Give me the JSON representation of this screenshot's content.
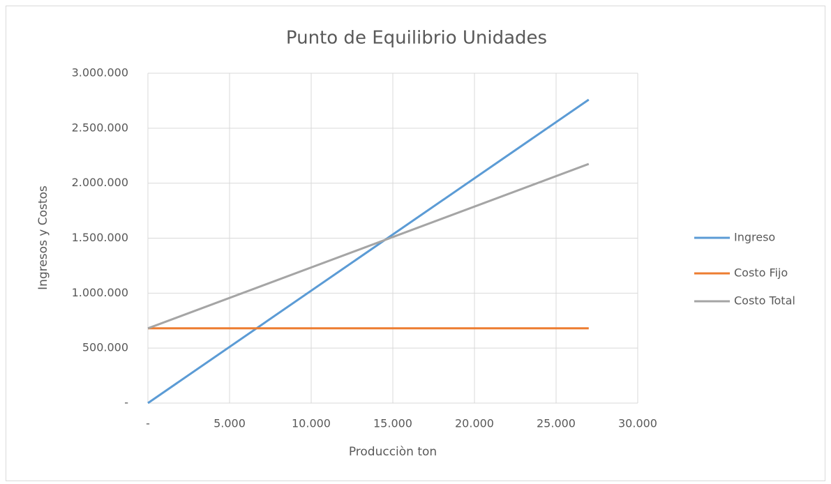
{
  "chart_data": {
    "type": "line",
    "title": "Punto de Equilibrio Unidades",
    "x_label": "Producciòn ton",
    "y_label": "Ingresos y  Costos",
    "x": [
      0,
      27000
    ],
    "series": [
      {
        "name": "Ingreso",
        "color": "#5b9bd5",
        "values": [
          0,
          2760000
        ]
      },
      {
        "name": "Costo Fijo",
        "color": "#ed7d31",
        "values": [
          680000,
          680000
        ]
      },
      {
        "name": "Costo Total",
        "color": "#a5a5a5",
        "values": [
          680000,
          2175000
        ]
      }
    ],
    "xlim": [
      0,
      30000
    ],
    "xticks": [
      {
        "value": 0,
        "label": "-"
      },
      {
        "value": 5000,
        "label": "5.000"
      },
      {
        "value": 10000,
        "label": "10.000"
      },
      {
        "value": 15000,
        "label": "15.000"
      },
      {
        "value": 20000,
        "label": "20.000"
      },
      {
        "value": 25000,
        "label": "25.000"
      },
      {
        "value": 30000,
        "label": "30.000"
      }
    ],
    "ylim": [
      0,
      3000000
    ],
    "yticks": [
      {
        "value": 0,
        "label": "-"
      },
      {
        "value": 500000,
        "label": "500.000"
      },
      {
        "value": 1000000,
        "label": "1.000.000"
      },
      {
        "value": 1500000,
        "label": "1.500.000"
      },
      {
        "value": 2000000,
        "label": "2.000.000"
      },
      {
        "value": 2500000,
        "label": "2.500.000"
      },
      {
        "value": 3000000,
        "label": "3.000.000"
      }
    ],
    "grid": true,
    "legend": "right"
  }
}
